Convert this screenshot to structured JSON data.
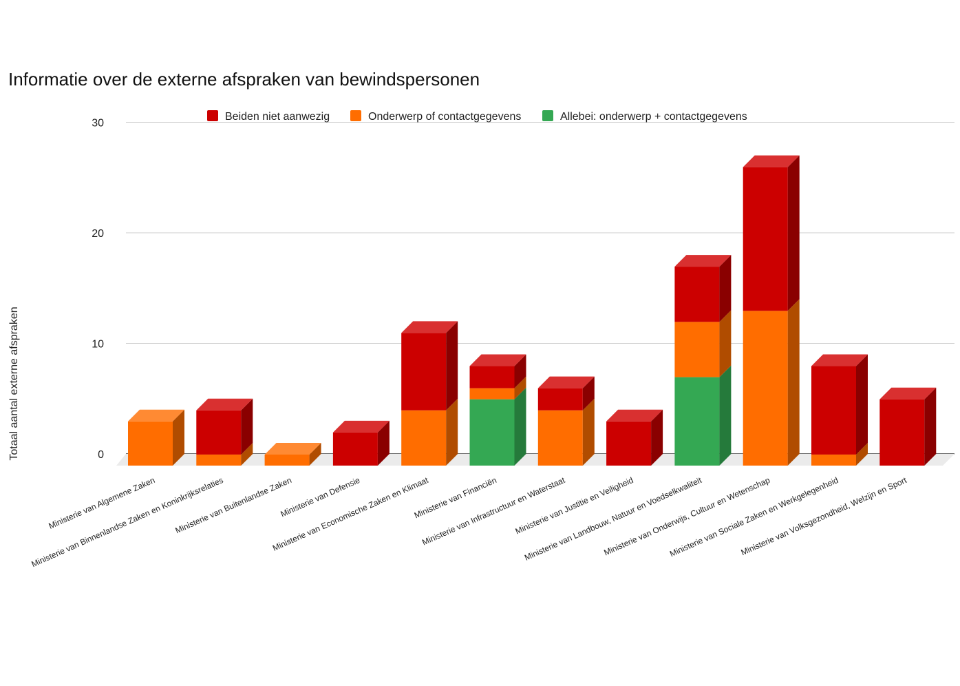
{
  "chart_data": {
    "type": "bar",
    "stacked": true,
    "three_d": true,
    "title": "Informatie over de externe afspraken van bewindspersonen",
    "xlabel": "",
    "ylabel": "Totaal aantal externe afspraken",
    "ylim": [
      0,
      30
    ],
    "yticks": [
      "0",
      "10",
      "20",
      "30"
    ],
    "grid": true,
    "legend_position": "top",
    "categories": [
      "Ministerie van Algemene Zaken",
      "Ministerie van Binnenlandse Zaken en Koninkrijksrelaties",
      "Ministerie van Buitenlandse Zaken",
      "Ministerie van Defensie",
      "Ministerie van Economische Zaken en Klimaat",
      "Ministerie van Financiën",
      "Ministerie van Infrastructuur en Waterstaat",
      "Ministerie van Justitie en Veiligheid",
      "Ministerie van Landbouw, Natuur en Voedselkwaliteit",
      "Ministerie van Onderwijs, Cultuur en Wetenschap",
      "Ministerie van Sociale Zaken en Werkgelegenheid",
      "Ministerie van Volksgezondheid, Welzijn en Sport"
    ],
    "series": [
      {
        "name": "Allebei: onderwerp + contactgegevens",
        "color": "#34a853",
        "side": "#257a3b",
        "top": "#46b964",
        "values": [
          0,
          0,
          0,
          0,
          0,
          6,
          0,
          0,
          8,
          0,
          0,
          0
        ]
      },
      {
        "name": "Onderwerp of contactgegevens",
        "color": "#ff6d00",
        "side": "#b04c00",
        "top": "#ff8a33",
        "values": [
          4,
          1,
          1,
          0,
          5,
          1,
          5,
          0,
          5,
          14,
          1,
          0
        ]
      },
      {
        "name": "Beiden niet aanwezig",
        "color": "#cc0000",
        "side": "#8a0000",
        "top": "#d93030",
        "values": [
          0,
          4,
          0,
          3,
          7,
          2,
          2,
          4,
          5,
          13,
          8,
          6
        ]
      }
    ],
    "legend_order": [
      2,
      1,
      0
    ]
  }
}
